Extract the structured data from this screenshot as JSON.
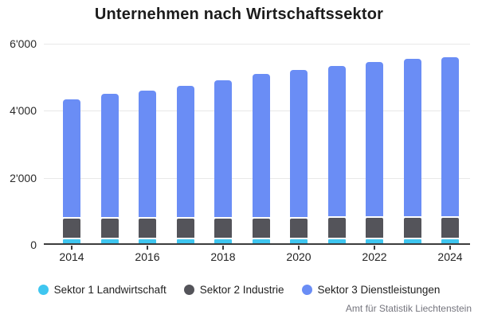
{
  "title": "Unternehmen nach Wirtschaftssektor",
  "attribution": "Amt für Statistik Liechtenstein",
  "colors": {
    "sektor1": "#3fc6f0",
    "sektor2": "#54545a",
    "sektor3": "#6a8df5",
    "gridline": "#e8e8e8",
    "axis_line": "#3c3c3c",
    "title_text": "#1c1c1c",
    "attribution_text": "#75757e"
  },
  "chart_data": {
    "type": "bar",
    "stacked": true,
    "title": "Unternehmen nach Wirtschaftssektor",
    "xlabel": "",
    "ylabel": "",
    "ylim": [
      0,
      6000
    ],
    "grid": "horizontal",
    "legend_position": "bottom",
    "categories": [
      "2014",
      "2015",
      "2016",
      "2017",
      "2018",
      "2019",
      "2020",
      "2021",
      "2022",
      "2023",
      "2024"
    ],
    "x_tick_labels": [
      "2014",
      "2016",
      "2018",
      "2020",
      "2022",
      "2024"
    ],
    "yticks": [
      {
        "value": 0,
        "label": "0"
      },
      {
        "value": 2000,
        "label": "2'000"
      },
      {
        "value": 4000,
        "label": "4'000"
      },
      {
        "value": 6000,
        "label": "6'000"
      }
    ],
    "series": [
      {
        "name": "Sektor 1 Landwirtschaft",
        "color": "#3fc6f0",
        "values": [
          110,
          110,
          110,
          110,
          110,
          110,
          110,
          110,
          110,
          110,
          110
        ]
      },
      {
        "name": "Sektor 2 Industrie",
        "color": "#54545a",
        "values": [
          620,
          625,
          625,
          630,
          630,
          635,
          635,
          640,
          640,
          645,
          650
        ]
      },
      {
        "name": "Sektor 3 Dienstleistungen",
        "color": "#6a8df5",
        "values": [
          3570,
          3735,
          3815,
          3950,
          4120,
          4305,
          4415,
          4540,
          4650,
          4755,
          4800
        ]
      }
    ],
    "totals": [
      4300,
      4470,
      4550,
      4690,
      4860,
      5050,
      5160,
      5290,
      5400,
      5510,
      5560
    ]
  }
}
